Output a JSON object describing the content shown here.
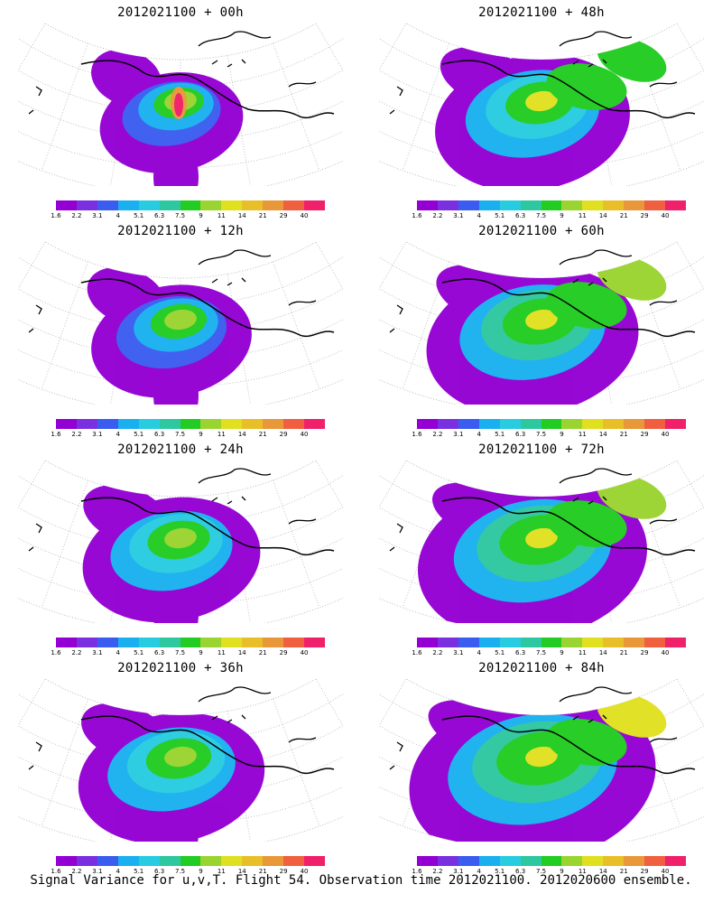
{
  "figure": {
    "caption": "Signal Variance for u,v,T. Flight 54. Observation time 2012021100. 2012020600 ensemble."
  },
  "colorbar": {
    "labels": [
      "1.6",
      "2.2",
      "3.1",
      "4",
      "5.1",
      "6.3",
      "7.5",
      "9",
      "11",
      "14",
      "21",
      "29",
      "40"
    ],
    "colors": [
      "#9400d3",
      "#7a30e0",
      "#3b5cf0",
      "#1ab0f0",
      "#28cce0",
      "#2ec8a0",
      "#22cc22",
      "#9ad430",
      "#e0e020",
      "#e8bf28",
      "#e89838",
      "#f06040",
      "#f0206a"
    ]
  },
  "panels": [
    {
      "title": "2012021100 + 00h",
      "level": 0
    },
    {
      "title": "2012021100 + 48h",
      "level": 3
    },
    {
      "title": "2012021100 + 12h",
      "level": 1
    },
    {
      "title": "2012021100 + 60h",
      "level": 4
    },
    {
      "title": "2012021100 + 24h",
      "level": 2
    },
    {
      "title": "2012021100 + 72h",
      "level": 5
    },
    {
      "title": "2012021100 + 36h",
      "level": 2.5
    },
    {
      "title": "2012021100 + 84h",
      "level": 6
    }
  ]
}
